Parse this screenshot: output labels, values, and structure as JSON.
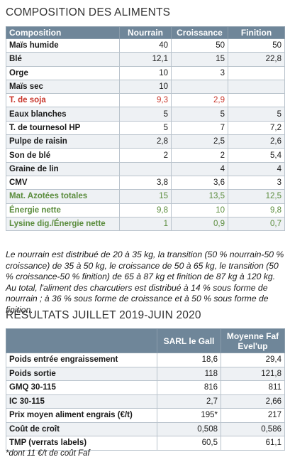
{
  "composition": {
    "title": "COMPOSITION DES ALIMENTS",
    "headers": [
      "Composition",
      "Nourrain",
      "Croissance",
      "Finition"
    ],
    "rows": [
      {
        "label": "Maïs humide",
        "v": [
          "40",
          "50",
          "50"
        ],
        "color": ""
      },
      {
        "label": "Blé",
        "v": [
          "12,1",
          "15",
          "22,8"
        ],
        "color": ""
      },
      {
        "label": "Orge",
        "v": [
          "10",
          "3",
          ""
        ],
        "color": ""
      },
      {
        "label": "Maïs sec",
        "v": [
          "10",
          "",
          ""
        ],
        "color": ""
      },
      {
        "label": "T. de soja",
        "v": [
          "9,3",
          "2,9",
          ""
        ],
        "color": "red"
      },
      {
        "label": "Eaux blanches",
        "v": [
          "5",
          "5",
          "5"
        ],
        "color": ""
      },
      {
        "label": "T. de tournesol HP",
        "v": [
          "5",
          "7",
          "7,2"
        ],
        "color": ""
      },
      {
        "label": "Pulpe de raisin",
        "v": [
          "2,8",
          "2,5",
          "2,6"
        ],
        "color": ""
      },
      {
        "label": "Son de blé",
        "v": [
          "2",
          "2",
          "5,4"
        ],
        "color": ""
      },
      {
        "label": "Graine de lin",
        "v": [
          "",
          "4",
          "4"
        ],
        "color": ""
      },
      {
        "label": "CMV",
        "v": [
          "3,8",
          "3,6",
          "3"
        ],
        "color": ""
      },
      {
        "label": "Mat. Azotées totales",
        "v": [
          "15",
          "13,5",
          "12,5"
        ],
        "color": "green"
      },
      {
        "label": "Énergie nette",
        "v": [
          "9,8",
          "10",
          "9,8"
        ],
        "color": "green"
      },
      {
        "label": "Lysine dig./Énergie nette",
        "v": [
          "1",
          "0,9",
          "0,7"
        ],
        "color": "green"
      }
    ],
    "note": "Le nourrain est distribué de 20 à 35 kg, la transition (50 % nourrain-50 % croissance) de 35 à 50 kg, le croissance de 50 à 65 kg, le transition (50 % croissance-50 % finition) de 65 à 87 kg et finition de 87 kg à 120 kg. Au total, l'aliment des charcutiers est distribué à 14 % sous forme de nourrain ; à 36 % sous forme de croissance et à 50 % sous forme de finition."
  },
  "results": {
    "title": "RÉSULTATS JUILLET 2019-JUIN 2020",
    "headers": [
      "",
      "SARL le Gall",
      "Moyenne Faf Evel'up"
    ],
    "rows": [
      {
        "label": "Poids entrée engraissement",
        "v": [
          "18,6",
          "29,4"
        ]
      },
      {
        "label": "Poids sortie",
        "v": [
          "118",
          "121,8"
        ]
      },
      {
        "label": "GMQ 30-115",
        "v": [
          "816",
          "811"
        ]
      },
      {
        "label": "IC 30-115",
        "v": [
          "2,7",
          "2,66"
        ]
      },
      {
        "label": "Prix moyen aliment engrais (€/t)",
        "v": [
          "195*",
          "217"
        ]
      },
      {
        "label": "Coût de croît",
        "v": [
          "0,508",
          "0,586"
        ]
      },
      {
        "label": "TMP (verrats labels)",
        "v": [
          "60,5",
          "61,1"
        ]
      }
    ],
    "footnote": "*dont 11 €/t de coût Faf"
  }
}
